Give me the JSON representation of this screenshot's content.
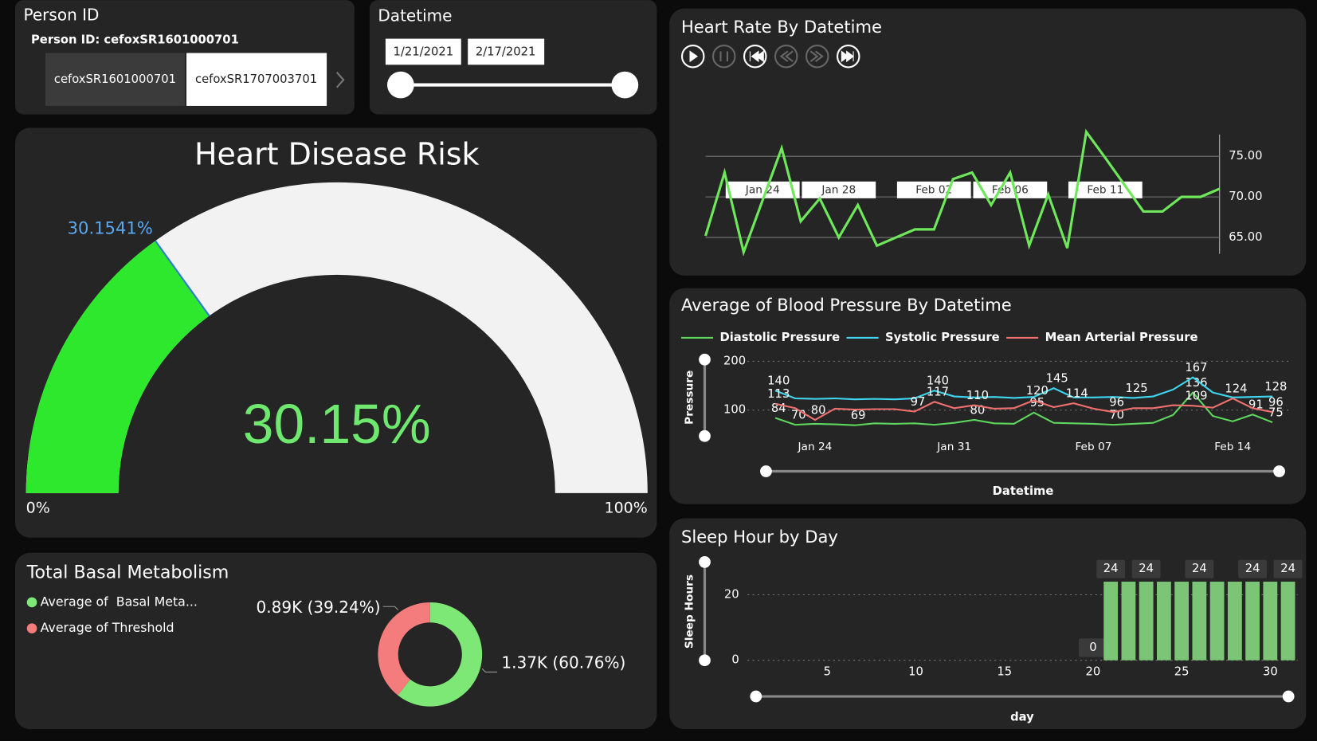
{
  "person_slicer": {
    "title": "Person ID",
    "header": "Person ID: cefoxSR1601000701",
    "items": [
      "cefoxSR1601000701",
      "cefoxSR1707003701"
    ]
  },
  "date_slicer": {
    "title": "Datetime",
    "start": "1/21/2021",
    "end": "2/17/2021"
  },
  "chart_data": [
    {
      "type": "gauge",
      "title": "Heart Disease Risk",
      "value": 30.1541,
      "value_labels": [
        "30.15%",
        "30.1541%"
      ],
      "ylim": [
        0,
        100
      ],
      "yticks": [
        {
          "value": 0,
          "label": "0%"
        },
        {
          "value": 100,
          "label": "100%"
        }
      ],
      "color": "#2ee82e",
      "track_color": "#f2f2f2",
      "marker_color": "#2d7dd2",
      "value_color": "#6ee86e",
      "marker_label_color": "#5aa9f0"
    },
    {
      "type": "line",
      "title": "Heart Rate By Datetime",
      "categories": [
        null,
        null,
        null,
        "Jan 24",
        null,
        null,
        null,
        "Jan 28",
        null,
        null,
        null,
        null,
        "Feb 02",
        null,
        null,
        null,
        "Feb 06",
        null,
        null,
        null,
        null,
        "Feb 11",
        null,
        null,
        null,
        null,
        null,
        null
      ],
      "series": [
        {
          "color": "#6ee85a",
          "values": [
            65.2,
            73,
            63.2,
            69.6,
            76,
            67,
            69.8,
            65,
            69,
            64,
            65,
            66,
            66,
            72.2,
            73,
            69,
            73,
            64,
            70.3,
            63.7,
            78,
            74.8,
            71.5,
            68.2,
            68.2,
            70,
            70,
            71
          ]
        }
      ],
      "ylim": [
        63,
        78
      ],
      "yticks": [
        {
          "value": 65,
          "label": "65.00"
        },
        {
          "value": 70,
          "label": "70.00"
        },
        {
          "value": 75,
          "label": "75.00"
        }
      ],
      "grid": true
    },
    {
      "type": "line",
      "title": "Average of Blood Pressure By Datetime",
      "x_label": "Datetime",
      "y_label": "Pressure",
      "categories": [
        null,
        null,
        "Jan 24",
        null,
        null,
        null,
        null,
        null,
        null,
        "Jan 31",
        null,
        null,
        null,
        null,
        null,
        null,
        "Feb 07",
        null,
        null,
        null,
        null,
        null,
        null,
        "Feb 14",
        null,
        null
      ],
      "series": [
        {
          "name": "Diastolic Pressure",
          "color": "#5cd65c",
          "values": [
            84,
            70,
            72,
            71,
            69,
            73,
            72,
            73,
            70,
            74,
            80,
            73,
            72,
            95,
            74,
            73,
            72,
            70,
            72,
            74,
            90,
            136,
            88,
            77,
            91,
            75
          ],
          "value_labels": [
            "84",
            "70",
            null,
            null,
            "69",
            null,
            null,
            null,
            null,
            null,
            "80",
            null,
            null,
            "95",
            null,
            null,
            null,
            "70",
            null,
            null,
            null,
            "136",
            null,
            null,
            "91",
            "75"
          ]
        },
        {
          "name": "Systolic Pressure",
          "color": "#3fd7f0",
          "values": [
            140,
            124,
            123,
            124,
            122,
            123,
            122,
            124,
            140,
            128,
            126,
            127,
            125,
            127,
            145,
            126,
            126,
            127,
            125,
            128,
            142,
            167,
            136,
            126,
            127,
            128
          ],
          "value_labels": [
            "140",
            null,
            null,
            null,
            null,
            null,
            null,
            null,
            "140",
            null,
            null,
            null,
            null,
            null,
            "145",
            null,
            null,
            null,
            "125",
            null,
            null,
            "167",
            null,
            null,
            null,
            "128"
          ]
        },
        {
          "name": "Mean Arterial Pressure",
          "color": "#f07070",
          "values": [
            113,
            104,
            80,
            103,
            101,
            102,
            102,
            97,
            117,
            104,
            110,
            103,
            104,
            120,
            106,
            114,
            103,
            96,
            104,
            104,
            110,
            109,
            105,
            124,
            104,
            96
          ],
          "value_labels": [
            "113",
            null,
            "80",
            null,
            null,
            null,
            null,
            "97",
            "117",
            null,
            "110",
            null,
            null,
            "120",
            null,
            "114",
            null,
            "96",
            null,
            null,
            null,
            "109",
            null,
            "124",
            null,
            "96"
          ]
        }
      ],
      "ylim": [
        47,
        200
      ],
      "yticks": [
        100,
        200
      ],
      "grid": true,
      "legend": "top"
    },
    {
      "type": "donut",
      "title": "Total Basal Metabolism",
      "categories": [
        "Average of  Basal Meta...",
        "Average of Threshold"
      ],
      "values": [
        1370,
        890
      ],
      "value_labels": [
        "1.37K (60.76%)",
        "0.89K (39.24%)"
      ],
      "colors": [
        "#7ee877",
        "#f47c7c"
      ],
      "legend": "top-left"
    },
    {
      "type": "bar",
      "title": "Sleep Hour by Day",
      "x_label": "day",
      "y_label": "Sleep Hours",
      "x": [
        20,
        21,
        22,
        23,
        24,
        25,
        26,
        27,
        28,
        29,
        30,
        31
      ],
      "values": [
        0,
        24,
        24,
        24,
        24,
        24,
        24,
        24,
        24,
        24,
        24,
        24
      ],
      "value_labels": [
        "0",
        "24",
        null,
        "24",
        null,
        null,
        "24",
        null,
        null,
        "24",
        null,
        "24"
      ],
      "xlim": [
        0.5,
        31.5
      ],
      "xticks": [
        5,
        10,
        15,
        20,
        25,
        30
      ],
      "ylim": [
        0,
        30
      ],
      "yticks": [
        0,
        20
      ],
      "grid": true,
      "color": "#7cc576"
    }
  ]
}
